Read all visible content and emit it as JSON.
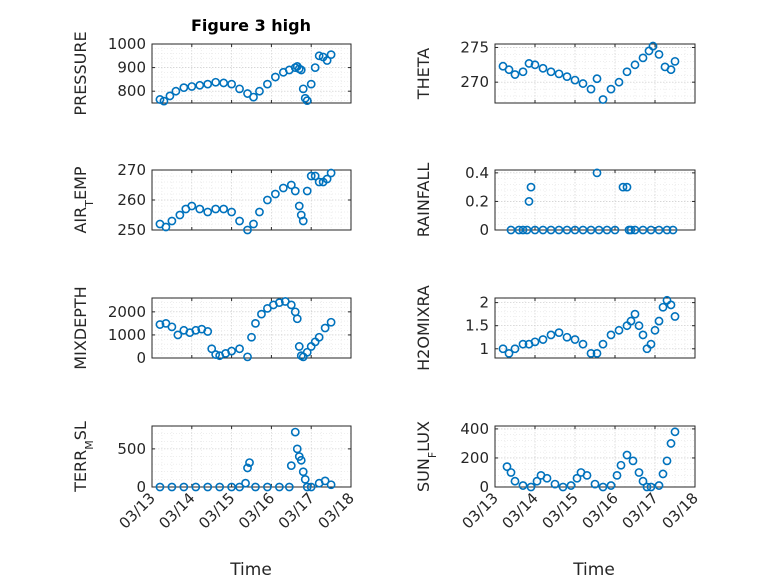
{
  "figure": {
    "title": "Figure 3 high",
    "marker_color": "#0072BD",
    "x_tick_labels": [
      "03/13",
      "03/14",
      "03/15",
      "03/16",
      "03/17",
      "03/18"
    ],
    "x_label": "Time"
  },
  "chart_data": [
    {
      "type": "scatter",
      "ylabel": "PRESSURE",
      "xlim": [
        0,
        5
      ],
      "ylim": [
        750,
        1000
      ],
      "yticks": [
        800,
        900,
        1000
      ],
      "grid": true,
      "title": "Figure 3 high",
      "x": [
        0.2,
        0.3,
        0.45,
        0.6,
        0.8,
        1.0,
        1.2,
        1.4,
        1.6,
        1.8,
        2.0,
        2.2,
        2.4,
        2.55,
        2.7,
        2.9,
        3.1,
        3.3,
        3.45,
        3.6,
        3.65,
        3.7,
        3.75,
        3.8,
        3.85,
        3.9,
        4.0,
        4.1,
        4.2,
        4.3,
        4.4,
        4.5
      ],
      "y": [
        765,
        758,
        780,
        800,
        815,
        820,
        825,
        830,
        838,
        835,
        830,
        810,
        790,
        775,
        800,
        830,
        860,
        880,
        890,
        900,
        905,
        895,
        890,
        810,
        770,
        760,
        830,
        900,
        950,
        945,
        930,
        955
      ]
    },
    {
      "type": "scatter",
      "ylabel": "THETA",
      "xlim": [
        0,
        5
      ],
      "ylim": [
        267,
        275.5
      ],
      "yticks": [
        270,
        275
      ],
      "grid": true,
      "x": [
        0.2,
        0.35,
        0.5,
        0.7,
        0.85,
        1.0,
        1.2,
        1.4,
        1.6,
        1.8,
        2.0,
        2.2,
        2.4,
        2.55,
        2.7,
        2.9,
        3.1,
        3.3,
        3.5,
        3.7,
        3.85,
        3.95,
        4.1,
        4.25,
        4.4,
        4.5
      ],
      "y": [
        272.3,
        271.8,
        271.1,
        271.5,
        272.7,
        272.5,
        272.0,
        271.5,
        271.2,
        270.8,
        270.3,
        269.8,
        269.0,
        270.5,
        267.5,
        269.0,
        270.0,
        271.5,
        272.5,
        273.5,
        274.5,
        275.2,
        274.0,
        272.2,
        271.8,
        273.0
      ]
    },
    {
      "type": "scatter",
      "ylabel": "AIR_TEMP",
      "xlim": [
        0,
        5
      ],
      "ylim": [
        250,
        270
      ],
      "yticks": [
        250,
        260,
        270
      ],
      "grid": true,
      "x": [
        0.2,
        0.35,
        0.5,
        0.7,
        0.85,
        1.0,
        1.2,
        1.4,
        1.6,
        1.8,
        2.0,
        2.2,
        2.4,
        2.55,
        2.7,
        2.9,
        3.1,
        3.3,
        3.5,
        3.6,
        3.7,
        3.75,
        3.8,
        3.9,
        4.0,
        4.1,
        4.2,
        4.3,
        4.4,
        4.5
      ],
      "y": [
        252,
        251,
        253,
        255,
        257,
        258,
        257,
        256,
        257,
        257,
        256,
        253,
        250,
        252,
        256,
        260,
        262,
        264,
        265,
        263,
        258,
        255,
        253,
        263,
        268,
        268,
        266,
        266,
        267,
        269
      ]
    },
    {
      "type": "scatter",
      "ylabel": "RAINFALL",
      "xlim": [
        0,
        5
      ],
      "ylim": [
        0,
        0.42
      ],
      "yticks": [
        0,
        0.2,
        0.4
      ],
      "grid": true,
      "x": [
        0.4,
        0.6,
        0.7,
        0.8,
        0.85,
        0.9,
        1.0,
        1.2,
        1.4,
        1.6,
        1.8,
        2.0,
        2.2,
        2.4,
        2.55,
        2.6,
        2.8,
        3.0,
        3.2,
        3.3,
        3.35,
        3.4,
        3.5,
        3.7,
        3.9,
        4.1,
        4.3,
        4.45
      ],
      "y": [
        0,
        0,
        0,
        0,
        0.2,
        0.3,
        0,
        0,
        0,
        0,
        0,
        0,
        0,
        0,
        0.4,
        0,
        0,
        0,
        0.3,
        0.3,
        0,
        0,
        0,
        0,
        0,
        0,
        0,
        0
      ]
    },
    {
      "type": "scatter",
      "ylabel": "MIXDEPTH",
      "xlim": [
        0,
        5
      ],
      "ylim": [
        0,
        2600
      ],
      "yticks": [
        0,
        1000,
        2000
      ],
      "grid": true,
      "x": [
        0.2,
        0.35,
        0.5,
        0.65,
        0.8,
        0.95,
        1.1,
        1.25,
        1.4,
        1.5,
        1.6,
        1.7,
        1.85,
        2.0,
        2.2,
        2.4,
        2.5,
        2.6,
        2.75,
        2.9,
        3.05,
        3.2,
        3.35,
        3.5,
        3.6,
        3.65,
        3.7,
        3.75,
        3.8,
        3.9,
        4.0,
        4.1,
        4.2,
        4.35,
        4.5
      ],
      "y": [
        1450,
        1500,
        1350,
        1000,
        1200,
        1100,
        1200,
        1250,
        1150,
        400,
        150,
        100,
        200,
        300,
        400,
        50,
        900,
        1500,
        1900,
        2150,
        2300,
        2400,
        2450,
        2300,
        2000,
        1700,
        500,
        100,
        50,
        250,
        500,
        700,
        900,
        1300,
        1550
      ]
    },
    {
      "type": "scatter",
      "ylabel": "H2OMIXRA",
      "xlim": [
        0,
        5
      ],
      "ylim": [
        0.8,
        2.1
      ],
      "yticks": [
        1,
        1.5,
        2
      ],
      "grid": true,
      "x": [
        0.2,
        0.35,
        0.5,
        0.7,
        0.85,
        1.0,
        1.2,
        1.4,
        1.6,
        1.8,
        2.0,
        2.2,
        2.4,
        2.55,
        2.7,
        2.9,
        3.1,
        3.3,
        3.4,
        3.5,
        3.6,
        3.7,
        3.8,
        3.9,
        4.0,
        4.1,
        4.2,
        4.3,
        4.4,
        4.5
      ],
      "y": [
        1.0,
        0.9,
        1.0,
        1.1,
        1.1,
        1.15,
        1.2,
        1.3,
        1.35,
        1.25,
        1.2,
        1.1,
        0.9,
        0.9,
        1.1,
        1.3,
        1.4,
        1.5,
        1.6,
        1.75,
        1.5,
        1.3,
        1.0,
        1.1,
        1.4,
        1.6,
        1.9,
        2.05,
        1.95,
        1.7
      ]
    },
    {
      "type": "scatter",
      "ylabel": "TERR_MSL",
      "xlim": [
        0,
        5
      ],
      "ylim": [
        0,
        800
      ],
      "yticks": [
        0,
        500
      ],
      "grid": true,
      "x": [
        0.2,
        0.5,
        0.8,
        1.1,
        1.4,
        1.7,
        2.0,
        2.2,
        2.35,
        2.4,
        2.45,
        2.6,
        2.9,
        3.2,
        3.45,
        3.5,
        3.6,
        3.65,
        3.7,
        3.75,
        3.8,
        3.85,
        3.9,
        4.0,
        4.2,
        4.35,
        4.5
      ],
      "y": [
        0,
        0,
        0,
        0,
        0,
        0,
        0,
        0,
        50,
        250,
        320,
        0,
        0,
        0,
        0,
        280,
        720,
        500,
        400,
        350,
        200,
        100,
        0,
        0,
        50,
        80,
        30
      ]
    },
    {
      "type": "scatter",
      "ylabel": "SUN_FLUX",
      "xlim": [
        0,
        5
      ],
      "ylim": [
        0,
        420
      ],
      "yticks": [
        0,
        200,
        400
      ],
      "grid": true,
      "x": [
        0.3,
        0.4,
        0.5,
        0.7,
        0.9,
        1.05,
        1.15,
        1.3,
        1.5,
        1.7,
        1.9,
        2.05,
        2.15,
        2.3,
        2.5,
        2.7,
        2.9,
        3.05,
        3.15,
        3.3,
        3.45,
        3.6,
        3.7,
        3.8,
        3.9,
        4.1,
        4.2,
        4.3,
        4.4,
        4.5
      ],
      "y": [
        140,
        100,
        40,
        10,
        0,
        40,
        80,
        60,
        20,
        0,
        10,
        60,
        100,
        80,
        20,
        0,
        10,
        80,
        150,
        220,
        180,
        100,
        40,
        0,
        0,
        10,
        90,
        180,
        300,
        380
      ]
    }
  ]
}
